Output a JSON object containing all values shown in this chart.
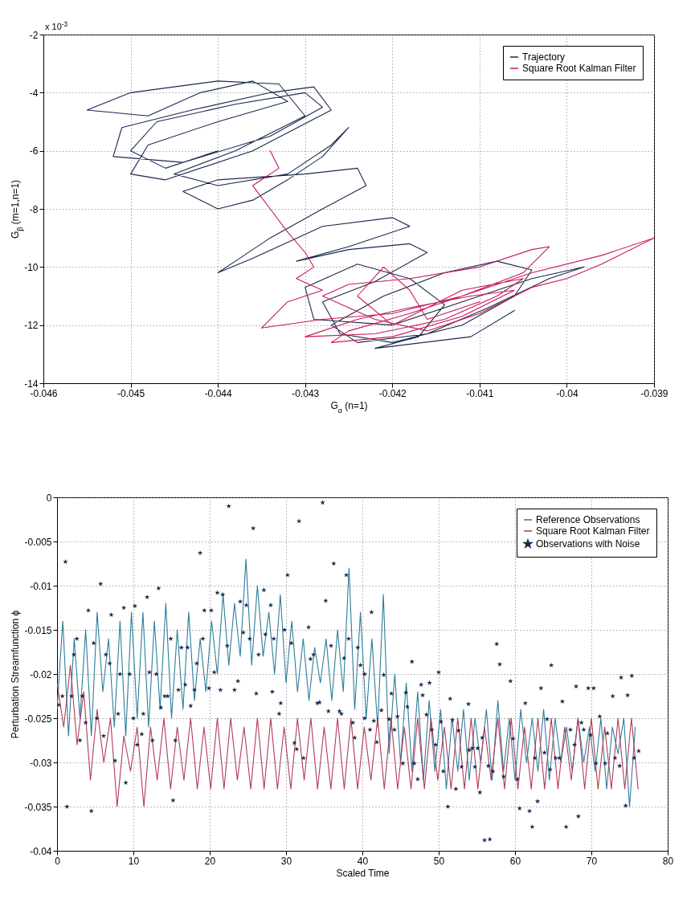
{
  "chart_data": [
    {
      "type": "line",
      "xlabel": "G$_{α}$ (n=1)",
      "ylabel": "G$_{β}$ (m=1,n=1)",
      "annotations": [
        "x 10$^{-3}$"
      ],
      "xlim": [
        -0.046,
        -0.039
      ],
      "xticks": [
        -0.046,
        -0.045,
        -0.044,
        -0.043,
        -0.042,
        -0.041,
        -0.04,
        -0.039
      ],
      "ylim": [
        -14,
        -2
      ],
      "yticks": [
        -14,
        -12,
        -10,
        -8,
        -6,
        -4,
        -2
      ],
      "grid": true,
      "legend": "top right",
      "series": [
        {
          "name": "Trajectory",
          "color": "#1a2850",
          "x": [
            -0.044,
            -0.0446,
            -0.045,
            -0.0447,
            -0.0438,
            -0.043,
            -0.0428,
            -0.0434,
            -0.0444,
            -0.0452,
            -0.0451,
            -0.0443,
            -0.0434,
            -0.0429,
            -0.0427,
            -0.0436,
            -0.0446,
            -0.045,
            -0.0448,
            -0.044,
            -0.0432,
            -0.0436,
            -0.0442,
            -0.0448,
            -0.0455,
            -0.045,
            -0.044,
            -0.0433,
            -0.043,
            -0.0438,
            -0.0445,
            -0.044,
            -0.0432,
            -0.0427,
            -0.0425,
            -0.0428,
            -0.0432,
            -0.0436,
            -0.044,
            -0.0444,
            -0.044,
            -0.043,
            -0.0424,
            -0.0423,
            -0.0428,
            -0.0434,
            -0.0438,
            -0.044,
            -0.0436,
            -0.0428,
            -0.042,
            -0.0418,
            -0.0425,
            -0.0431,
            -0.0425,
            -0.0418,
            -0.0416,
            -0.0422,
            -0.0428,
            -0.0426,
            -0.042,
            -0.0412,
            -0.0406,
            -0.0404,
            -0.0408,
            -0.0414,
            -0.0421,
            -0.0427,
            -0.0424,
            -0.0416,
            -0.0409,
            -0.0402,
            -0.0398,
            -0.0404,
            -0.0412,
            -0.042,
            -0.0429,
            -0.043,
            -0.0424,
            -0.0418,
            -0.0414,
            -0.0417,
            -0.0422,
            -0.0411,
            -0.0406
          ],
          "values": [
            -6.0,
            -6.6,
            -6.0,
            -5.0,
            -4.4,
            -4.0,
            -4.5,
            -5.5,
            -6.4,
            -6.2,
            -5.2,
            -4.6,
            -4.0,
            -3.8,
            -4.6,
            -6.0,
            -7.0,
            -6.8,
            -5.8,
            -5.0,
            -4.3,
            -3.6,
            -4.0,
            -4.8,
            -4.6,
            -4.0,
            -3.6,
            -3.7,
            -4.8,
            -6.0,
            -6.8,
            -7.2,
            -6.8,
            -5.8,
            -5.2,
            -6.2,
            -7.0,
            -7.7,
            -8.0,
            -7.4,
            -7.0,
            -6.8,
            -6.6,
            -7.2,
            -8.0,
            -9.0,
            -9.8,
            -10.2,
            -9.7,
            -8.6,
            -8.3,
            -8.6,
            -9.3,
            -9.8,
            -9.4,
            -9.2,
            -9.5,
            -10.5,
            -11.2,
            -12.3,
            -12.6,
            -12.0,
            -11.0,
            -10.1,
            -9.8,
            -10.2,
            -11.0,
            -12.0,
            -12.6,
            -12.3,
            -11.4,
            -10.4,
            -10.0,
            -10.4,
            -11.2,
            -12.0,
            -11.8,
            -10.7,
            -9.9,
            -10.4,
            -11.3,
            -12.4,
            -12.8,
            -12.4,
            -11.5
          ]
        },
        {
          "name": "Square Root Kalman Filter",
          "color": "#c8185a",
          "x": [
            -0.0434,
            -0.0433,
            -0.0436,
            -0.0434,
            -0.0432,
            -0.043,
            -0.0429,
            -0.0431,
            -0.0428,
            -0.0432,
            -0.0435,
            -0.0428,
            -0.042,
            -0.0412,
            -0.0405,
            -0.0402,
            -0.0404,
            -0.041,
            -0.0418,
            -0.0425,
            -0.0428,
            -0.0422,
            -0.0416,
            -0.041,
            -0.0404,
            -0.04,
            -0.0396,
            -0.039,
            -0.0396,
            -0.0404,
            -0.041,
            -0.0418,
            -0.0425,
            -0.0427,
            -0.042,
            -0.0412,
            -0.0406,
            -0.0411,
            -0.0418,
            -0.0424,
            -0.043,
            -0.0422,
            -0.0414,
            -0.0408,
            -0.0405,
            -0.0412,
            -0.042,
            -0.0424,
            -0.0421,
            -0.0418,
            -0.0416,
            -0.041
          ],
          "values": [
            -6.0,
            -6.6,
            -7.2,
            -8.0,
            -8.8,
            -9.5,
            -10.0,
            -10.4,
            -10.8,
            -11.2,
            -12.1,
            -11.8,
            -11.6,
            -11.0,
            -10.2,
            -9.3,
            -9.4,
            -10.0,
            -10.4,
            -10.6,
            -11.0,
            -11.8,
            -12.2,
            -11.6,
            -10.7,
            -10.4,
            -9.9,
            -9.0,
            -9.6,
            -10.2,
            -10.8,
            -11.6,
            -12.2,
            -12.6,
            -12.4,
            -11.7,
            -10.8,
            -11.0,
            -11.4,
            -11.8,
            -12.4,
            -12.3,
            -11.8,
            -11.0,
            -10.4,
            -10.8,
            -12.0,
            -11.0,
            -10.0,
            -10.8,
            -11.8,
            -11.2
          ]
        }
      ]
    },
    {
      "type": "line",
      "xlabel": "Scaled Time",
      "ylabel": "Perturbation Streamfunction ϕ",
      "xlim": [
        0,
        80
      ],
      "xticks": [
        0,
        10,
        20,
        30,
        40,
        50,
        60,
        70,
        80
      ],
      "ylim": [
        -0.04,
        0
      ],
      "yticks": [
        -0.04,
        -0.035,
        -0.03,
        -0.025,
        -0.02,
        -0.015,
        -0.01,
        -0.005,
        0
      ],
      "grid": true,
      "legend": "top right",
      "series": [
        {
          "name": "Reference Observations",
          "color": "#2d7d9a",
          "x": [
            0,
            0.75,
            1.5,
            2.25,
            3,
            3.75,
            4.5,
            5.25,
            6,
            6.75,
            7.5,
            8.25,
            9,
            9.75,
            10.5,
            11.25,
            12,
            12.75,
            13.5,
            14.25,
            15,
            15.75,
            16.5,
            17.25,
            18,
            18.75,
            19.5,
            20.25,
            21,
            21.75,
            22.5,
            23.25,
            24,
            24.75,
            25.5,
            26.25,
            27,
            27.75,
            28.5,
            29.25,
            30,
            30.75,
            31.5,
            32.25,
            33,
            33.75,
            34.5,
            35.25,
            36,
            36.75,
            37.5,
            38.25,
            39,
            39.75,
            40.5,
            41.25,
            42,
            42.75,
            43.5,
            44.25,
            45,
            45.75,
            46.5,
            47.25,
            48,
            48.75,
            49.5,
            50.25,
            51,
            51.75,
            52.5,
            53.25,
            54,
            54.75,
            55.5,
            56.25,
            57,
            57.75,
            58.5,
            59.25,
            60,
            60.75,
            61.5,
            62.25,
            63,
            63.75,
            64.5,
            65.25,
            66,
            66.75,
            67.5,
            68.25,
            69,
            69.75,
            70.5,
            71.25,
            72,
            72.75,
            73.5,
            74.25,
            75,
            75.75
          ],
          "values": [
            -0.024,
            -0.014,
            -0.027,
            -0.016,
            -0.025,
            -0.015,
            -0.027,
            -0.013,
            -0.022,
            -0.016,
            -0.026,
            -0.014,
            -0.027,
            -0.013,
            -0.025,
            -0.013,
            -0.026,
            -0.014,
            -0.024,
            -0.012,
            -0.025,
            -0.015,
            -0.024,
            -0.013,
            -0.023,
            -0.016,
            -0.022,
            -0.014,
            -0.02,
            -0.011,
            -0.019,
            -0.012,
            -0.018,
            -0.007,
            -0.019,
            -0.01,
            -0.018,
            -0.013,
            -0.02,
            -0.011,
            -0.021,
            -0.014,
            -0.022,
            -0.016,
            -0.023,
            -0.017,
            -0.021,
            -0.016,
            -0.023,
            -0.015,
            -0.022,
            -0.008,
            -0.024,
            -0.013,
            -0.025,
            -0.016,
            -0.026,
            -0.011,
            -0.029,
            -0.02,
            -0.03,
            -0.021,
            -0.031,
            -0.022,
            -0.032,
            -0.023,
            -0.031,
            -0.024,
            -0.033,
            -0.025,
            -0.031,
            -0.024,
            -0.032,
            -0.025,
            -0.03,
            -0.024,
            -0.032,
            -0.023,
            -0.031,
            -0.025,
            -0.032,
            -0.024,
            -0.03,
            -0.025,
            -0.031,
            -0.024,
            -0.032,
            -0.025,
            -0.03,
            -0.026,
            -0.031,
            -0.025,
            -0.03,
            -0.026,
            -0.031,
            -0.025,
            -0.033,
            -0.026,
            -0.029,
            -0.025,
            -0.035,
            -0.026
          ]
        },
        {
          "name": "Square Root Kalman Filter",
          "color": "#b03a55",
          "x": [
            0,
            0.875,
            1.75,
            2.625,
            3.5,
            4.375,
            5.25,
            6.125,
            7,
            7.875,
            8.75,
            9.625,
            10.5,
            11.375,
            12.25,
            13.125,
            14,
            14.875,
            15.75,
            16.625,
            17.5,
            18.375,
            19.25,
            20.125,
            21,
            21.875,
            22.75,
            23.625,
            24.5,
            25.375,
            26.25,
            27.125,
            28,
            28.875,
            29.75,
            30.625,
            31.5,
            32.375,
            33.25,
            34.125,
            35,
            35.875,
            36.75,
            37.625,
            38.5,
            39.375,
            40.25,
            41.125,
            42,
            42.875,
            43.75,
            44.625,
            45.5,
            46.375,
            47.25,
            48.125,
            49,
            49.875,
            50.75,
            51.625,
            52.5,
            53.375,
            54.25,
            55.125,
            56,
            56.875,
            57.75,
            58.625,
            59.5,
            60.375,
            61.25,
            62.125,
            63,
            63.875,
            64.75,
            65.625,
            66.5,
            67.375,
            68.25,
            69.125,
            70,
            70.875,
            71.75,
            72.625,
            73.5,
            74.375,
            75.25,
            76.125
          ],
          "values": [
            -0.021,
            -0.026,
            -0.019,
            -0.028,
            -0.022,
            -0.032,
            -0.024,
            -0.03,
            -0.025,
            -0.035,
            -0.027,
            -0.031,
            -0.026,
            -0.035,
            -0.026,
            -0.032,
            -0.025,
            -0.033,
            -0.026,
            -0.032,
            -0.025,
            -0.033,
            -0.026,
            -0.033,
            -0.025,
            -0.033,
            -0.025,
            -0.032,
            -0.026,
            -0.033,
            -0.025,
            -0.033,
            -0.025,
            -0.033,
            -0.026,
            -0.033,
            -0.025,
            -0.032,
            -0.025,
            -0.033,
            -0.026,
            -0.033,
            -0.025,
            -0.033,
            -0.025,
            -0.033,
            -0.026,
            -0.032,
            -0.025,
            -0.033,
            -0.025,
            -0.033,
            -0.026,
            -0.033,
            -0.025,
            -0.033,
            -0.025,
            -0.032,
            -0.026,
            -0.033,
            -0.025,
            -0.033,
            -0.025,
            -0.033,
            -0.026,
            -0.032,
            -0.025,
            -0.033,
            -0.025,
            -0.033,
            -0.026,
            -0.033,
            -0.025,
            -0.033,
            -0.025,
            -0.033,
            -0.026,
            -0.032,
            -0.025,
            -0.033,
            -0.025,
            -0.033,
            -0.026,
            -0.033,
            -0.025,
            -0.033,
            -0.025,
            -0.033
          ]
        },
        {
          "name": "Observations with Noise",
          "type": "scatter",
          "marker": "star",
          "color": "#1a2850",
          "x": [
            0.2,
            1.1,
            1.3,
            0.7,
            1.9,
            2.2,
            2.6,
            3.0,
            3.3,
            3.75,
            4.1,
            4.5,
            4.8,
            5.2,
            5.7,
            6.1,
            6.4,
            6.9,
            7.1,
            7.6,
            8.0,
            8.25,
            8.75,
            9.0,
            9.5,
            10.2,
            10.0,
            10.5,
            11.1,
            11.3,
            11.8,
            12.1,
            12.5,
            13.0,
            13.3,
            13.6,
            14.1,
            14.5,
            14.9,
            15.2,
            15.5,
            15.9,
            16.3,
            16.8,
            17.1,
            17.5,
            18.0,
            18.3,
            18.75,
            19.1,
            19.3,
            19.9,
            20.2,
            20.6,
            21.0,
            21.4,
            21.7,
            22.5,
            22.3,
            23.25,
            23.7,
            24.0,
            24.4,
            24.8,
            25.25,
            25.7,
            26.1,
            26.4,
            27.1,
            27.3,
            28.0,
            28.2,
            28.4,
            29.1,
            29.3,
            29.8,
            30.2,
            30.7,
            31.1,
            31.4,
            31.7,
            32.3,
            32.95,
            33.2,
            33.6,
            34.1,
            34.4,
            34.8,
            35.2,
            35.55,
            35.9,
            36.25,
            37.0,
            37.25,
            37.6,
            37.9,
            38.2,
            38.75,
            39.0,
            39.4,
            39.75,
            40.3,
            40.3,
            41.0,
            41.2,
            41.5,
            41.9,
            42.5,
            42.8,
            43.5,
            43.8,
            44.2,
            44.6,
            45.3,
            45.7,
            45.9,
            46.5,
            46.8,
            47.25,
            47.7,
            47.9,
            48.4,
            48.8,
            49.1,
            49.6,
            50.0,
            50.3,
            50.6,
            51.2,
            51.5,
            51.8,
            52.25,
            52.6,
            53.0,
            53.9,
            54.0,
            54.4,
            54.75,
            55.1,
            55.4,
            55.7,
            56.0,
            56.7,
            56.5,
            57.1,
            57.6,
            58.0,
            58.5,
            59.4,
            59.75,
            60.3,
            60.6,
            61.35,
            61.9,
            62.25,
            62.6,
            62.95,
            63.4,
            63.85,
            64.2,
            64.75,
            64.6,
            65.3,
            65.8,
            66.2,
            66.7,
            67.25,
            67.8,
            68.0,
            68.3,
            68.7,
            69.0,
            69.6,
            69.9,
            70.3,
            70.6,
            71.1,
            71.8,
            72.1,
            72.8,
            73.1,
            73.7,
            73.9,
            74.5,
            74.75,
            75.3,
            75.6,
            76.2
          ],
          "values": [
            -0.0235,
            -0.0073,
            -0.035,
            -0.0225,
            -0.0225,
            -0.0178,
            -0.016,
            -0.0275,
            -0.0225,
            -0.0255,
            -0.0128,
            -0.0355,
            -0.0165,
            -0.025,
            -0.0098,
            -0.027,
            -0.0178,
            -0.0188,
            -0.0133,
            -0.0298,
            -0.0245,
            -0.02,
            -0.0125,
            -0.0323,
            -0.02,
            -0.0123,
            -0.025,
            -0.028,
            -0.0268,
            -0.0245,
            -0.0113,
            -0.0198,
            -0.0275,
            -0.02,
            -0.0103,
            -0.0238,
            -0.0225,
            -0.0225,
            -0.016,
            -0.0343,
            -0.0275,
            -0.0218,
            -0.017,
            -0.0212,
            -0.017,
            -0.0236,
            -0.0218,
            -0.0188,
            -0.0063,
            -0.016,
            -0.0128,
            -0.0216,
            -0.0128,
            -0.0198,
            -0.0108,
            -0.0218,
            -0.011,
            -0.001,
            -0.0168,
            -0.0218,
            -0.0208,
            -0.0118,
            -0.0153,
            -0.0122,
            -0.016,
            -0.0035,
            -0.0222,
            -0.0178,
            -0.0105,
            -0.0155,
            -0.0122,
            -0.022,
            -0.016,
            -0.0245,
            -0.0233,
            -0.015,
            -0.0088,
            -0.0165,
            -0.0278,
            -0.0285,
            -0.0027,
            -0.0295,
            -0.0147,
            -0.0183,
            -0.0178,
            -0.0233,
            -0.0232,
            -0.0006,
            -0.0117,
            -0.0242,
            -0.0168,
            -0.0075,
            -0.0242,
            -0.0245,
            -0.0182,
            -0.0088,
            -0.016,
            -0.0255,
            -0.0272,
            -0.017,
            -0.019,
            -0.02,
            -0.025,
            -0.0263,
            -0.013,
            -0.0253,
            -0.0277,
            -0.0241,
            -0.0201,
            -0.0251,
            -0.0222,
            -0.0263,
            -0.0248,
            -0.0301,
            -0.0221,
            -0.0237,
            -0.0186,
            -0.0301,
            -0.0319,
            -0.0212,
            -0.0224,
            -0.0246,
            -0.021,
            -0.0263,
            -0.028,
            -0.0198,
            -0.0254,
            -0.031,
            -0.035,
            -0.0228,
            -0.0252,
            -0.033,
            -0.0264,
            -0.0305,
            -0.0234,
            -0.0286,
            -0.0284,
            -0.0305,
            -0.0284,
            -0.0334,
            -0.0272,
            -0.0388,
            -0.0387,
            -0.0304,
            -0.031,
            -0.0166,
            -0.0189,
            -0.0316,
            -0.0208,
            -0.0273,
            -0.0319,
            -0.0352,
            -0.0233,
            -0.0355,
            -0.0373,
            -0.0295,
            -0.0344,
            -0.0216,
            -0.0289,
            -0.0251,
            -0.019,
            -0.0308,
            -0.0295,
            -0.0295,
            -0.0231,
            -0.0373,
            -0.0263,
            -0.028,
            -0.0214,
            -0.0361,
            -0.0255,
            -0.0263,
            -0.0216,
            -0.0269,
            -0.0216,
            -0.0301,
            -0.0248,
            -0.0301,
            -0.0267,
            -0.0225,
            -0.0295,
            -0.0304,
            -0.0204,
            -0.0349,
            -0.0224,
            -0.0202,
            -0.0295,
            -0.0287
          ]
        }
      ]
    }
  ]
}
